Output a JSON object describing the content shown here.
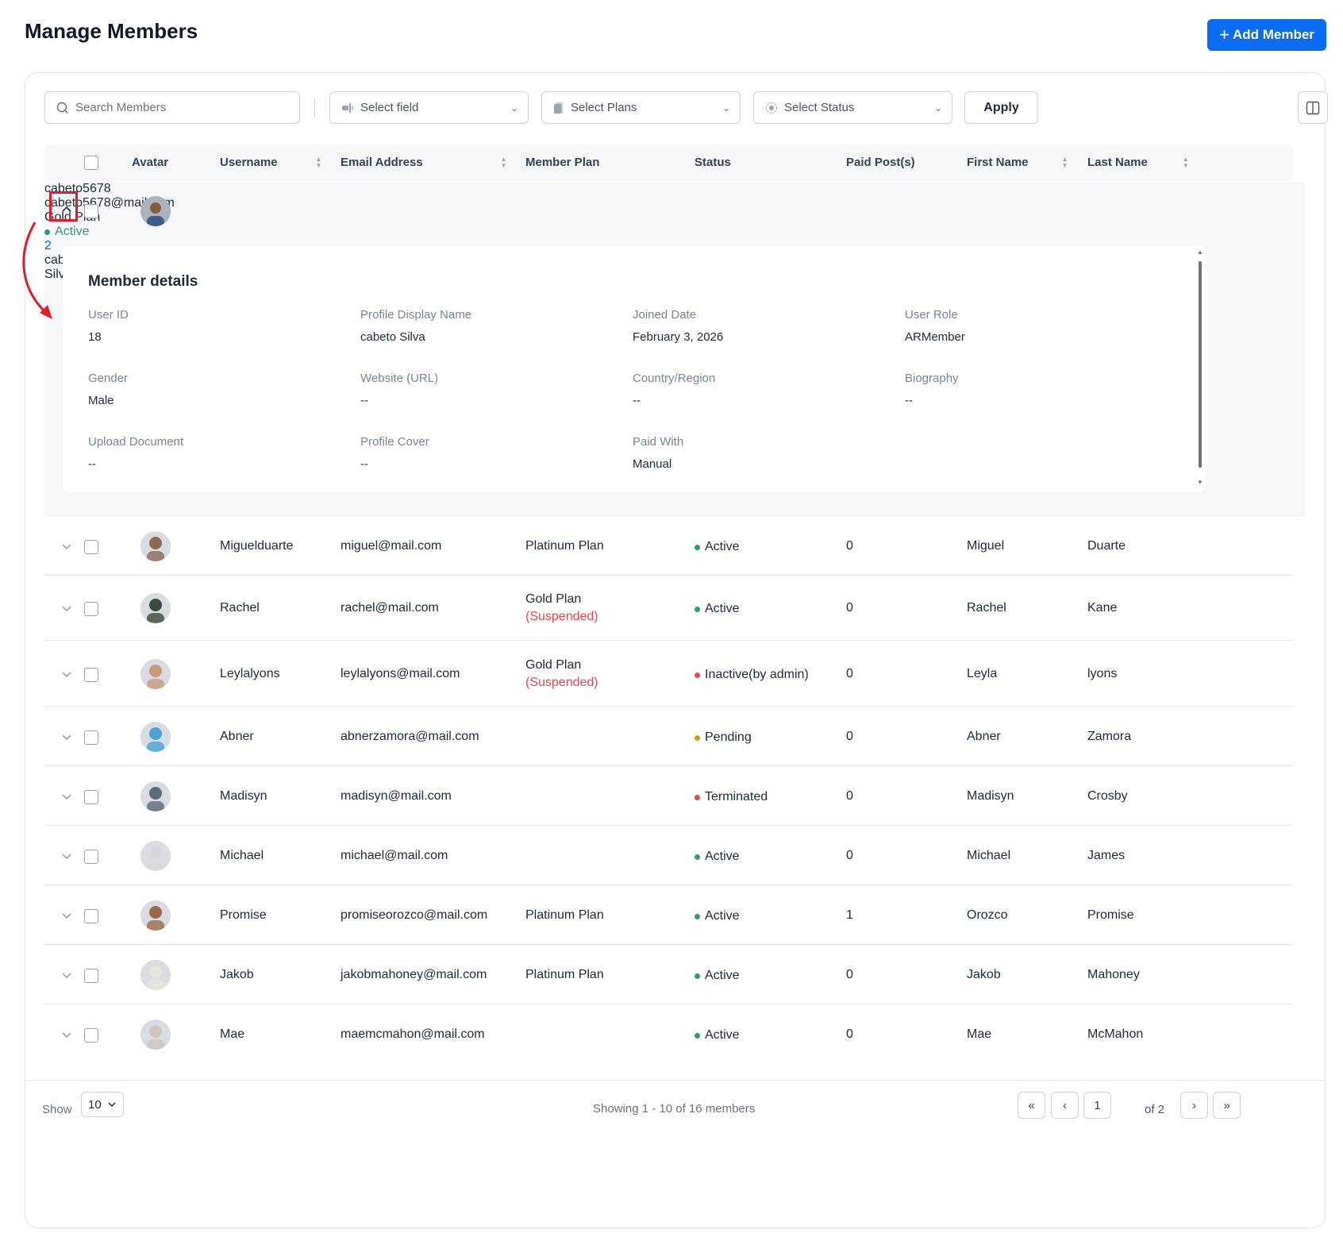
{
  "header": {
    "title": "Manage Members",
    "add_label": "Add Member"
  },
  "toolbar": {
    "search_placeholder": "Search Members",
    "field_select": "Select field",
    "plans_select": "Select Plans",
    "status_select": "Select Status",
    "apply_label": "Apply"
  },
  "columns": {
    "avatar": "Avatar",
    "username": "Username",
    "email": "Email Address",
    "plan": "Member Plan",
    "status": "Status",
    "paid": "Paid Post(s)",
    "first": "First Name",
    "last": "Last Name"
  },
  "expanded_member": {
    "username": "cabeto5678",
    "email": "cabeto5678@mail.com",
    "plan": "Gold Plan",
    "status": "Active",
    "paid": "2",
    "first": "cabeto",
    "last": "Silva",
    "details_title": "Member details",
    "fields": [
      {
        "label": "User ID",
        "value": "18"
      },
      {
        "label": "Profile Display Name",
        "value": "cabeto Silva"
      },
      {
        "label": "Joined Date",
        "value": "February 3, 2026"
      },
      {
        "label": "User Role",
        "value": "ARMember"
      },
      {
        "label": "Gender",
        "value": "Male"
      },
      {
        "label": "Website (URL)",
        "value": "--"
      },
      {
        "label": "Country/Region",
        "value": "--"
      },
      {
        "label": "Biography",
        "value": "--"
      },
      {
        "label": "Upload Document",
        "value": "--"
      },
      {
        "label": "Profile Cover",
        "value": "--"
      },
      {
        "label": "Paid With",
        "value": "Manual"
      }
    ]
  },
  "rows": [
    {
      "username": "Miguelduarte",
      "email": "miguel@mail.com",
      "plan": "Platinum Plan",
      "suspended": "",
      "status": "Active",
      "status_type": "active",
      "paid": "0",
      "first": "Miguel",
      "last": "Duarte",
      "avatar_color": "#8a6a55"
    },
    {
      "username": "Rachel",
      "email": "rachel@mail.com",
      "plan": "Gold Plan",
      "suspended": "(Suspended)",
      "status": "Active",
      "status_type": "active",
      "paid": "0",
      "first": "Rachel",
      "last": "Kane",
      "avatar_color": "#3b4a3a"
    },
    {
      "username": "Leylalyons",
      "email": "leylalyons@mail.com",
      "plan": "Gold Plan",
      "suspended": "(Suspended)",
      "status": "Inactive(by admin)",
      "status_type": "inactive",
      "paid": "0",
      "first": "Leyla",
      "last": "lyons",
      "avatar_color": "#c9987a"
    },
    {
      "username": "Abner",
      "email": "abnerzamora@mail.com",
      "plan": "",
      "suspended": "",
      "status": "Pending",
      "status_type": "pending",
      "paid": "0",
      "first": "Abner",
      "last": "Zamora",
      "avatar_color": "#4aa3d6"
    },
    {
      "username": "Madisyn",
      "email": "madisyn@mail.com",
      "plan": "",
      "suspended": "",
      "status": "Terminated",
      "status_type": "inactive",
      "paid": "0",
      "first": "Madisyn",
      "last": "Crosby",
      "avatar_color": "#5a6b7a"
    },
    {
      "username": "Michael",
      "email": "michael@mail.com",
      "plan": "",
      "suspended": "",
      "status": "Active",
      "status_type": "active",
      "paid": "0",
      "first": "Michael",
      "last": "James",
      "avatar_color": "#d8d8d8"
    },
    {
      "username": "Promise",
      "email": "promiseorozco@mail.com",
      "plan": "Platinum Plan",
      "suspended": "",
      "status": "Active",
      "status_type": "active",
      "paid": "1",
      "first": "Orozco",
      "last": "Promise",
      "avatar_color": "#9a6a4a"
    },
    {
      "username": "Jakob",
      "email": "jakobmahoney@mail.com",
      "plan": "Platinum Plan",
      "suspended": "",
      "status": "Active",
      "status_type": "active",
      "paid": "0",
      "first": "Jakob",
      "last": "Mahoney",
      "avatar_color": "#e8e4e0"
    },
    {
      "username": "Mae",
      "email": "maemcmahon@mail.com",
      "plan": "",
      "suspended": "",
      "status": "Active",
      "status_type": "active",
      "paid": "0",
      "first": "Mae",
      "last": "McMahon",
      "avatar_color": "#cfc6bd"
    }
  ],
  "footer": {
    "show_label": "Show",
    "page_size": "10",
    "showing_text": "Showing 1 - 10 of 16 members",
    "current_page": "1",
    "of_pages": "of 2"
  },
  "colors": {
    "accent": "#0a6cf5",
    "active": "#2e9b72",
    "inactive": "#e5484d",
    "pending": "#c98a08"
  }
}
